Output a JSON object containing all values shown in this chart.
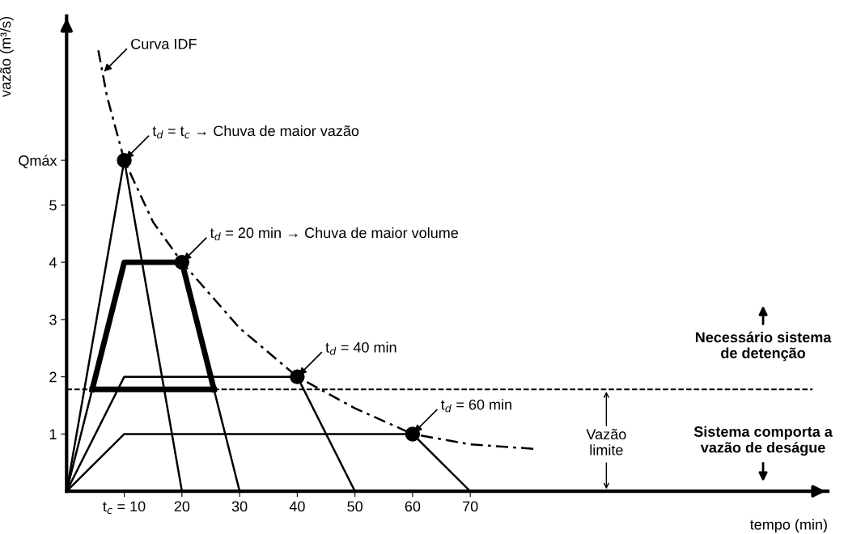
{
  "chart_data": {
    "type": "line",
    "xlabel": "tempo (min)",
    "ylabel": "vazão (m³/s)",
    "xlim": [
      0,
      132
    ],
    "ylim": [
      0,
      8.3
    ],
    "xticks": [
      {
        "value": 10,
        "label": "t$_{c}$ = 10"
      },
      20,
      30,
      40,
      50,
      60,
      70
    ],
    "yticks": [
      1,
      2,
      3,
      4,
      5,
      {
        "value": 5.78,
        "label": "Qmáx"
      }
    ],
    "series": [
      {
        "color": "#000000",
        "x": [
          0,
          10,
          20
        ],
        "values": [
          0,
          5.78,
          0
        ]
      },
      {
        "color": "#000000",
        "x": [
          0,
          10,
          20,
          30
        ],
        "values": [
          0,
          4,
          4,
          0
        ]
      },
      {
        "color": "#000000",
        "x": [
          0,
          10,
          40,
          50
        ],
        "values": [
          0,
          2,
          2,
          0
        ]
      },
      {
        "color": "#000000",
        "x": [
          0,
          10,
          60,
          70
        ],
        "values": [
          0,
          1,
          1,
          0
        ]
      },
      {
        "color": "#000000",
        "line_style": "dashed",
        "x": [
          5.5,
          7,
          10,
          15,
          20,
          30,
          40,
          50,
          60,
          70,
          81.3
        ],
        "values": [
          7.7,
          6.9,
          5.78,
          4.7,
          4,
          2.85,
          2,
          1.45,
          1,
          0.82,
          0.74
        ]
      },
      {
        "color": "#000000",
        "x": [
          4.45,
          10,
          20,
          25.55
        ],
        "values": [
          1.78,
          4,
          4,
          1.78
        ]
      },
      {
        "color": "#000000",
        "x": [
          4.45,
          25.55
        ],
        "values": [
          1.78,
          1.78
        ]
      },
      {
        "type": "scatter",
        "color": "#000000",
        "marker": "circle",
        "x": [
          10,
          20,
          40,
          60
        ],
        "values": [
          5.78,
          4,
          2,
          1
        ]
      }
    ],
    "ref_lines": [
      {
        "axis": "y",
        "value": 1.78,
        "color": "#000000",
        "line_style": "dashed"
      }
    ],
    "annotations": [
      {
        "text": "Curva IDF",
        "x": 6.2,
        "y": 7.3
      },
      {
        "text": "t$_{d}$ = t$_{c}$ → Chuva de maior vazão",
        "x": 10,
        "y": 5.78
      },
      {
        "text": "t$_{d}$ = 20 min → Chuva de maior volume",
        "x": 20,
        "y": 4
      },
      {
        "text": "t$_{d}$ = 40 min",
        "x": 40,
        "y": 2
      },
      {
        "text": "t$_{d}$ = 60 min",
        "x": 60,
        "y": 1
      },
      {
        "text": "Vazão\nlimite",
        "x": 93.6,
        "y": 1.78
      },
      "Necessário sistema\nde detenção",
      "Sistema comporta a\nvazão de deságue"
    ]
  }
}
